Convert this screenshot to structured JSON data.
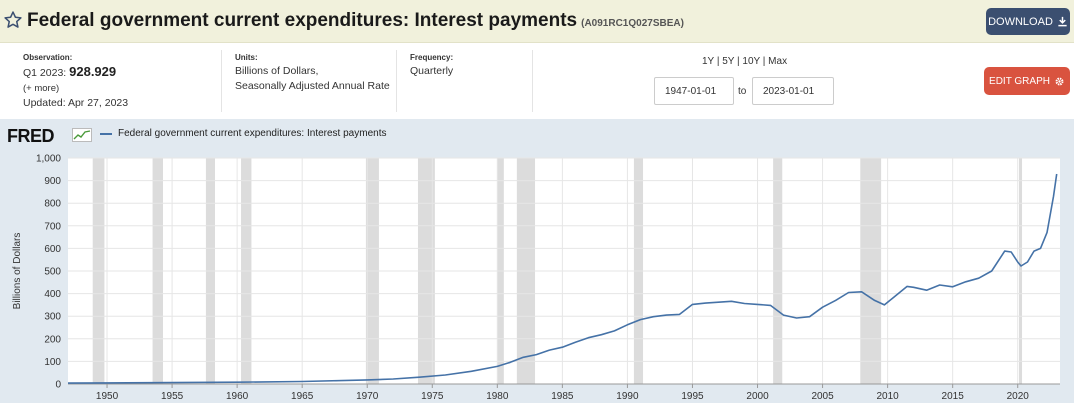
{
  "header": {
    "title": "Federal government current expenditures: Interest payments",
    "series_id": "(A091RC1Q027SBEA)",
    "download_label": "DOWNLOAD"
  },
  "meta": {
    "observation_label": "Observation:",
    "observation_period": "Q1 2023:",
    "observation_value": "928.929",
    "more": "(+ more)",
    "updated": "Updated: Apr 27, 2023",
    "units_label": "Units:",
    "units_line1": "Billions of Dollars,",
    "units_line2": "Seasonally Adjusted Annual Rate",
    "frequency_label": "Frequency:",
    "frequency": "Quarterly",
    "ranges": "1Y | 5Y | 10Y | Max",
    "start_date": "1947-01-01",
    "to_label": "to",
    "end_date": "2023-01-01",
    "edit_label": "EDIT GRAPH"
  },
  "colors": {
    "line": "#4572a7",
    "recession": "#dcdcdc",
    "accent_red": "#d9533f",
    "accent_navy": "#3b4f70"
  },
  "chart_data": {
    "type": "line",
    "logo": "FRED",
    "ylabel": "Billions of Dollars",
    "ylim": [
      0,
      1000
    ],
    "xlim": [
      1947.0,
      2023.25
    ],
    "yticks": [
      "0",
      "100",
      "200",
      "300",
      "400",
      "500",
      "600",
      "700",
      "800",
      "900",
      "1,000"
    ],
    "xticks": [
      "1950",
      "1955",
      "1960",
      "1965",
      "1970",
      "1975",
      "1980",
      "1985",
      "1990",
      "1995",
      "2000",
      "2005",
      "2010",
      "2015",
      "2020"
    ],
    "grid": true,
    "legend_position": "top-left",
    "recessions": [
      [
        1948.9,
        1949.8
      ],
      [
        1953.5,
        1954.3
      ],
      [
        1957.6,
        1958.3
      ],
      [
        1960.3,
        1961.1
      ],
      [
        1969.9,
        1970.9
      ],
      [
        1973.9,
        1975.2
      ],
      [
        1980.0,
        1980.5
      ],
      [
        1981.5,
        1982.9
      ],
      [
        1990.5,
        1991.2
      ],
      [
        2001.2,
        2001.9
      ],
      [
        2007.9,
        2009.5
      ],
      [
        2020.1,
        2020.3
      ]
    ],
    "series": [
      {
        "name": "Federal government current expenditures: Interest payments",
        "x": [
          1947,
          1950,
          1955,
          1960,
          1965,
          1970,
          1972,
          1974,
          1976,
          1978,
          1980,
          1981,
          1982,
          1983,
          1984,
          1985,
          1986,
          1987,
          1988,
          1989,
          1990,
          1991,
          1992,
          1993,
          1994,
          1995,
          1996,
          1997,
          1998,
          1999,
          2000,
          2001,
          2002,
          2003,
          2004,
          2005,
          2006,
          2007,
          2008,
          2009,
          2009.75,
          2010.5,
          2011.5,
          2012,
          2013,
          2014,
          2015,
          2016,
          2017,
          2018,
          2019,
          2019.5,
          2020,
          2020.25,
          2020.75,
          2021.25,
          2021.75,
          2022.25,
          2022.75,
          2023
        ],
        "y": [
          4,
          5,
          6,
          8,
          11,
          18,
          22,
          30,
          40,
          56,
          78,
          96,
          118,
          130,
          150,
          163,
          185,
          205,
          218,
          235,
          262,
          285,
          298,
          305,
          308,
          352,
          358,
          362,
          366,
          356,
          352,
          348,
          305,
          292,
          298,
          340,
          370,
          405,
          408,
          370,
          350,
          385,
          432,
          428,
          415,
          438,
          430,
          452,
          468,
          500,
          588,
          584,
          540,
          522,
          540,
          588,
          600,
          670,
          830,
          929
        ]
      }
    ]
  }
}
